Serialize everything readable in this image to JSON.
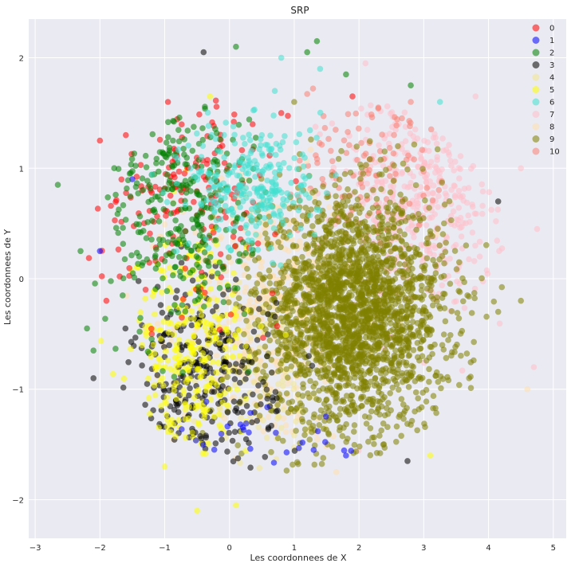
{
  "chart_data": {
    "type": "scatter",
    "title": "SRP",
    "xlabel": "Les coordonnees de X",
    "ylabel": "Les coordonnees de Y",
    "xlim": [
      -3.1,
      5.2
    ],
    "ylim": [
      -2.35,
      2.35
    ],
    "xticks": [
      -3,
      -2,
      -1,
      0,
      1,
      2,
      3,
      4,
      5
    ],
    "yticks": [
      -2,
      -1,
      0,
      1,
      2
    ],
    "grid": true,
    "legend_position": "top-right",
    "series": [
      {
        "name": "0",
        "color": "#ff0000",
        "center": [
          -0.6,
          0.8
        ],
        "spread": [
          0.7,
          0.45
        ],
        "count": 160,
        "points": [
          [
            -2.0,
            1.25
          ],
          [
            -0.95,
            1.6
          ],
          [
            -1.2,
            -0.5
          ],
          [
            -1.9,
            -0.2
          ],
          [
            0.8,
            1.5
          ],
          [
            1.9,
            1.65
          ],
          [
            -1.6,
            1.3
          ]
        ]
      },
      {
        "name": "1",
        "color": "#0000ff",
        "center": [
          0.5,
          -1.4
        ],
        "spread": [
          0.8,
          0.15
        ],
        "count": 25,
        "points": [
          [
            -1.5,
            0.9
          ],
          [
            -2.0,
            0.25
          ],
          [
            1.8,
            -1.6
          ],
          [
            1.3,
            -1.55
          ]
        ]
      },
      {
        "name": "2",
        "color": "#008000",
        "center": [
          -0.8,
          0.65
        ],
        "spread": [
          0.55,
          0.55
        ],
        "count": 320,
        "points": [
          [
            -2.65,
            0.85
          ],
          [
            -2.3,
            0.25
          ],
          [
            0.1,
            2.1
          ],
          [
            1.35,
            2.15
          ],
          [
            1.2,
            2.05
          ],
          [
            -2.2,
            -0.45
          ],
          [
            -2.1,
            -0.65
          ],
          [
            1.8,
            1.85
          ],
          [
            2.8,
            1.75
          ]
        ]
      },
      {
        "name": "3",
        "color": "#000000",
        "center": [
          -0.4,
          -0.95
        ],
        "spread": [
          0.55,
          0.45
        ],
        "count": 280,
        "points": [
          [
            -0.4,
            2.05
          ],
          [
            2.75,
            -1.65
          ],
          [
            4.15,
            0.7
          ],
          [
            -2.1,
            -0.9
          ]
        ]
      },
      {
        "name": "4",
        "color": "#f0e68c",
        "center": [
          0.5,
          -0.9
        ],
        "spread": [
          0.6,
          0.4
        ],
        "count": 120,
        "points": []
      },
      {
        "name": "5",
        "color": "#ffff00",
        "center": [
          -0.6,
          -0.7
        ],
        "spread": [
          0.45,
          0.55
        ],
        "count": 300,
        "points": [
          [
            -0.5,
            -2.1
          ],
          [
            -1.0,
            -1.7
          ],
          [
            0.1,
            -2.05
          ],
          [
            3.1,
            -1.6
          ],
          [
            -0.3,
            1.65
          ]
        ]
      },
      {
        "name": "6",
        "color": "#40e0d0",
        "center": [
          0.4,
          0.85
        ],
        "spread": [
          0.5,
          0.3
        ],
        "count": 280,
        "points": [
          [
            0.8,
            2.0
          ],
          [
            1.4,
            1.9
          ],
          [
            3.25,
            1.6
          ],
          [
            0.7,
            1.7
          ]
        ]
      },
      {
        "name": "7",
        "color": "#ffc0cb",
        "center": [
          3.0,
          0.75
        ],
        "spread": [
          0.65,
          0.55
        ],
        "count": 420,
        "points": [
          [
            4.75,
            0.45
          ],
          [
            4.7,
            -0.8
          ],
          [
            2.1,
            1.95
          ],
          [
            3.8,
            1.65
          ],
          [
            4.5,
            1.0
          ]
        ]
      },
      {
        "name": "8",
        "color": "#ffdead",
        "center": [
          0.6,
          -0.3
        ],
        "spread": [
          0.7,
          0.6
        ],
        "count": 450,
        "points": [
          [
            4.6,
            -1.0
          ],
          [
            1.65,
            -1.75
          ],
          [
            3.2,
            0.4
          ]
        ]
      },
      {
        "name": "9",
        "color": "#808000",
        "center": [
          1.9,
          -0.3
        ],
        "spread": [
          0.72,
          0.52
        ],
        "count": 2400,
        "points": [
          [
            4.5,
            -0.2
          ],
          [
            4.15,
            -0.3
          ],
          [
            3.7,
            -0.9
          ],
          [
            1.0,
            1.6
          ],
          [
            2.6,
            1.2
          ]
        ]
      },
      {
        "name": "10",
        "color": "#fa8072",
        "center": [
          2.2,
          1.1
        ],
        "spread": [
          0.55,
          0.35
        ],
        "count": 100,
        "points": [
          [
            2.8,
            1.6
          ],
          [
            2.3,
            1.55
          ]
        ]
      }
    ]
  }
}
